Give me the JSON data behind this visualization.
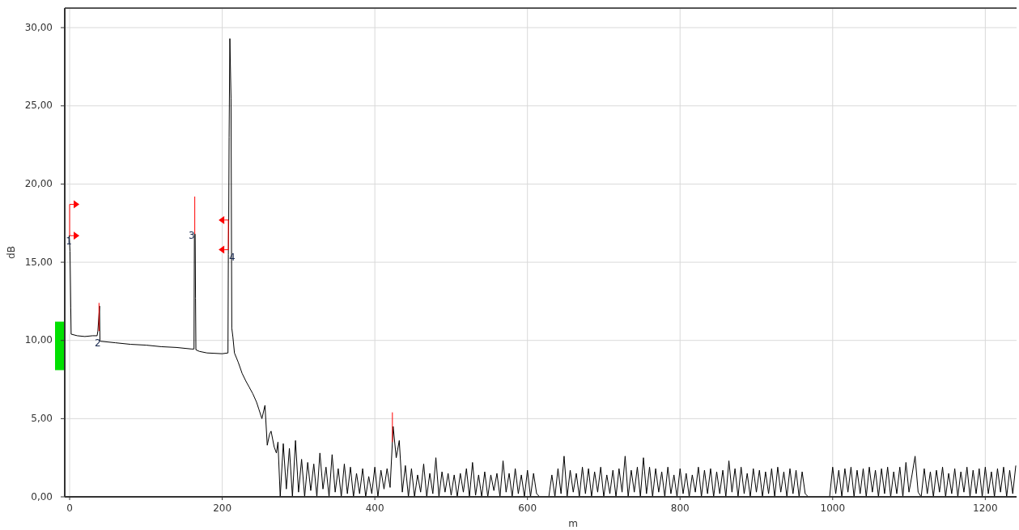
{
  "chart_data": {
    "type": "line",
    "xlabel": "m",
    "ylabel": "dB",
    "xlim": [
      -6.4,
      1241
    ],
    "ylim": [
      0,
      31.25
    ],
    "xticks": [
      0,
      200,
      400,
      600,
      800,
      1000,
      1200
    ],
    "yticks": [
      {
        "value": 0,
        "label": "0,00"
      },
      {
        "value": 5,
        "label": "5,00"
      },
      {
        "value": 10,
        "label": "10,00"
      },
      {
        "value": 15,
        "label": "15,00"
      },
      {
        "value": 20,
        "label": "20,00"
      },
      {
        "value": 25,
        "label": "25,00"
      },
      {
        "value": 30,
        "label": "30,00"
      }
    ],
    "grid": true,
    "marker": "none",
    "line_style": "solid",
    "annotations": [
      {
        "text": "1",
        "x": -1,
        "y": 16.3
      },
      {
        "text": "2",
        "x": 37,
        "y": 9.8
      },
      {
        "text": "3",
        "x": 160,
        "y": 16.7
      },
      {
        "text": "4",
        "x": 213,
        "y": 15.3
      }
    ],
    "series": [
      {
        "color": "#000000",
        "x": [
          -1,
          -0.5,
          0.5,
          1.5,
          2,
          10,
          20,
          30,
          36,
          37,
          39.2,
          39.7,
          40,
          60,
          80,
          100,
          120,
          140,
          160,
          163,
          163.5,
          164.5,
          165,
          165.5,
          170,
          180,
          200,
          207.5,
          208,
          208.5,
          209,
          210,
          211.5,
          212.5,
          214,
          216,
          221,
          226,
          231,
          235.5,
          240,
          245,
          248,
          252,
          256,
          259,
          262,
          264,
          268,
          271,
          273,
          276,
          280,
          284,
          288,
          292,
          296,
          300,
          304,
          308,
          312,
          316,
          320,
          324,
          328,
          332,
          336,
          340,
          344,
          348,
          352,
          356,
          360,
          364,
          368,
          372,
          376,
          380,
          384,
          388,
          392,
          396,
          400,
          404,
          408,
          412,
          416,
          420,
          424,
          428,
          432,
          436,
          440,
          444,
          448,
          452,
          456,
          460,
          464,
          468,
          472,
          476,
          480,
          484,
          488,
          492,
          496,
          500,
          504,
          508,
          512,
          516,
          520,
          524,
          528,
          532,
          536,
          540,
          544,
          548,
          552,
          556,
          560,
          564,
          568,
          572,
          576,
          580,
          584,
          588,
          592,
          596,
          600,
          604,
          608,
          612,
          616,
          620,
          624,
          628,
          632,
          636,
          640,
          644,
          648,
          652,
          656,
          660,
          664,
          668,
          672,
          676,
          680,
          684,
          688,
          692,
          696,
          700,
          704,
          708,
          712,
          716,
          720,
          724,
          728,
          732,
          736,
          740,
          744,
          748,
          752,
          756,
          760,
          764,
          768,
          772,
          776,
          780,
          784,
          788,
          792,
          796,
          800,
          804,
          808,
          812,
          816,
          820,
          824,
          828,
          832,
          836,
          840,
          844,
          848,
          852,
          856,
          860,
          864,
          868,
          872,
          876,
          880,
          884,
          888,
          892,
          896,
          900,
          904,
          908,
          912,
          916,
          920,
          924,
          928,
          932,
          936,
          940,
          944,
          948,
          952,
          956,
          960,
          964,
          968,
          972,
          976,
          980,
          984,
          988,
          992,
          996,
          1000,
          1004,
          1008,
          1012,
          1016,
          1020,
          1024,
          1028,
          1032,
          1036,
          1040,
          1044,
          1048,
          1052,
          1056,
          1060,
          1064,
          1068,
          1072,
          1076,
          1080,
          1084,
          1088,
          1092,
          1096,
          1100,
          1104,
          1108,
          1112,
          1116,
          1120,
          1124,
          1128,
          1132,
          1136,
          1140,
          1144,
          1148,
          1152,
          1156,
          1160,
          1164,
          1168,
          1172,
          1176,
          1180,
          1184,
          1188,
          1192,
          1196,
          1200,
          1204,
          1208,
          1212,
          1216,
          1220,
          1224,
          1228,
          1232,
          1236,
          1240
        ],
        "values": [
          16.5,
          16.7,
          15.7,
          12.1,
          10.4,
          10.3,
          10.25,
          10.3,
          10.3,
          10.6,
          12.2,
          10,
          9.95,
          9.85,
          9.75,
          9.7,
          9.6,
          9.55,
          9.45,
          9.45,
          16.8,
          16.8,
          12.7,
          9.4,
          9.3,
          9.2,
          9.15,
          9.2,
          15.5,
          17.8,
          23,
          29.3,
          25.5,
          10.8,
          10.2,
          9.2,
          8.6,
          7.9,
          7.4,
          7,
          6.6,
          6.05,
          5.6,
          5,
          5.85,
          3.3,
          4,
          4.2,
          3.2,
          2.8,
          3.5,
          0,
          3.4,
          0.5,
          3.1,
          0,
          3.6,
          0.3,
          2.4,
          0,
          2.2,
          0.4,
          2.1,
          0,
          2.8,
          0.5,
          1.9,
          0,
          2.7,
          0.3,
          1.8,
          0,
          2.1,
          0.2,
          1.9,
          0,
          1.5,
          0.2,
          1.8,
          0,
          1.3,
          0.2,
          1.9,
          0,
          1.7,
          0.5,
          1.8,
          0.6,
          4.5,
          2.5,
          3.6,
          0.3,
          2,
          0,
          1.8,
          0,
          1.4,
          0.3,
          2.1,
          0,
          1.5,
          0.2,
          2.5,
          0,
          1.6,
          0.3,
          1.5,
          0.1,
          1.4,
          0,
          1.5,
          0.3,
          1.8,
          0,
          2.2,
          0.1,
          1.4,
          0,
          1.6,
          0,
          1.4,
          0.4,
          1.5,
          0,
          2.3,
          0.3,
          1.5,
          0,
          1.8,
          0.2,
          1.4,
          0,
          1.7,
          0,
          1.5,
          0.2,
          0,
          0,
          0,
          0,
          1.4,
          0,
          1.8,
          0.2,
          2.6,
          0,
          1.7,
          0.3,
          1.5,
          0,
          1.9,
          0.2,
          1.8,
          0,
          1.6,
          0.3,
          1.9,
          0,
          1.4,
          0.2,
          1.7,
          0,
          1.8,
          0.3,
          2.6,
          0,
          1.7,
          0.3,
          1.9,
          0,
          2.5,
          0.2,
          1.9,
          0,
          1.8,
          0.3,
          1.6,
          0,
          1.9,
          0.2,
          1.4,
          0,
          1.8,
          0.2,
          1.5,
          0,
          1.4,
          0.3,
          1.9,
          0,
          1.7,
          0.2,
          1.8,
          0,
          1.6,
          0.2,
          1.7,
          0,
          2.3,
          0.3,
          1.8,
          0,
          1.9,
          0.2,
          1.5,
          0,
          1.8,
          0.3,
          1.7,
          0,
          1.6,
          0.2,
          1.8,
          0,
          1.9,
          0.3,
          1.6,
          0,
          1.8,
          0.2,
          1.7,
          0,
          1.6,
          0.2,
          0,
          0,
          0,
          0,
          0,
          0,
          0,
          0,
          1.9,
          0.2,
          1.7,
          0,
          1.8,
          0.3,
          1.9,
          0,
          1.7,
          0.2,
          1.8,
          0,
          1.9,
          0.3,
          1.7,
          0,
          1.8,
          0.2,
          1.9,
          0,
          1.6,
          0.2,
          1.9,
          0,
          2.2,
          0.3,
          1.4,
          2.6,
          0.3,
          0,
          1.8,
          0.2,
          1.6,
          0,
          1.7,
          0.3,
          1.9,
          0,
          1.5,
          0.2,
          1.8,
          0,
          1.6,
          0.3,
          1.9,
          0,
          1.7,
          0.2,
          1.8,
          0,
          1.9,
          0.2,
          1.6,
          0,
          1.8,
          0.3,
          1.9,
          0,
          1.7,
          0.2,
          2
        ]
      },
      {
        "color": "#ff0000",
        "x": [
          38.5,
          38.5
        ],
        "values": [
          10.6,
          12.4
        ]
      },
      {
        "color": "#ff0000",
        "x": [
          164,
          164
        ],
        "values": [
          16.8,
          19.2
        ]
      },
      {
        "color": "#ff0000",
        "x": [
          423,
          423
        ],
        "values": [
          3.5,
          5.4
        ]
      }
    ]
  }
}
